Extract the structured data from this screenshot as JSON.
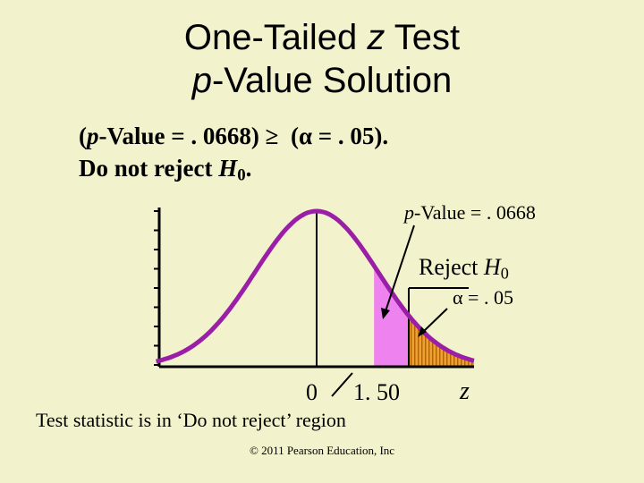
{
  "title": {
    "line1_pre": "One-Tailed ",
    "line1_var": "z",
    "line1_post": " Test",
    "line2_var": "p",
    "line2_post": "-Value Solution"
  },
  "statement": {
    "line1_open": "(",
    "line1_p": "p",
    "line1_mid": "-Value = . 0668)",
    "line1_ge": "≥",
    "line1_paren": "(",
    "line1_alpha": "α",
    "line1_end": " = . 05).",
    "line2_pre": "Do not reject ",
    "line2_h": "H",
    "line2_sub": "0",
    "line2_dot": "."
  },
  "labels": {
    "pvalue_p": "p",
    "pvalue_rest": "-Value = . 0668",
    "reject_pre": "Reject ",
    "reject_h": "H",
    "reject_sub": "0",
    "alpha_sym": "α",
    "alpha_rest": " = . 05",
    "zero": "0",
    "test_stat": "1. 50",
    "axis_var": "z",
    "conclusion": "Test statistic is in ‘Do not reject’ region"
  },
  "footer": "© 2011 Pearson Education, Inc",
  "colors": {
    "curve": "#9b1fa6",
    "pvalue_fill": "#ee82ee",
    "reject_fill": "#f0a030",
    "background": "#f2f2cc"
  }
}
